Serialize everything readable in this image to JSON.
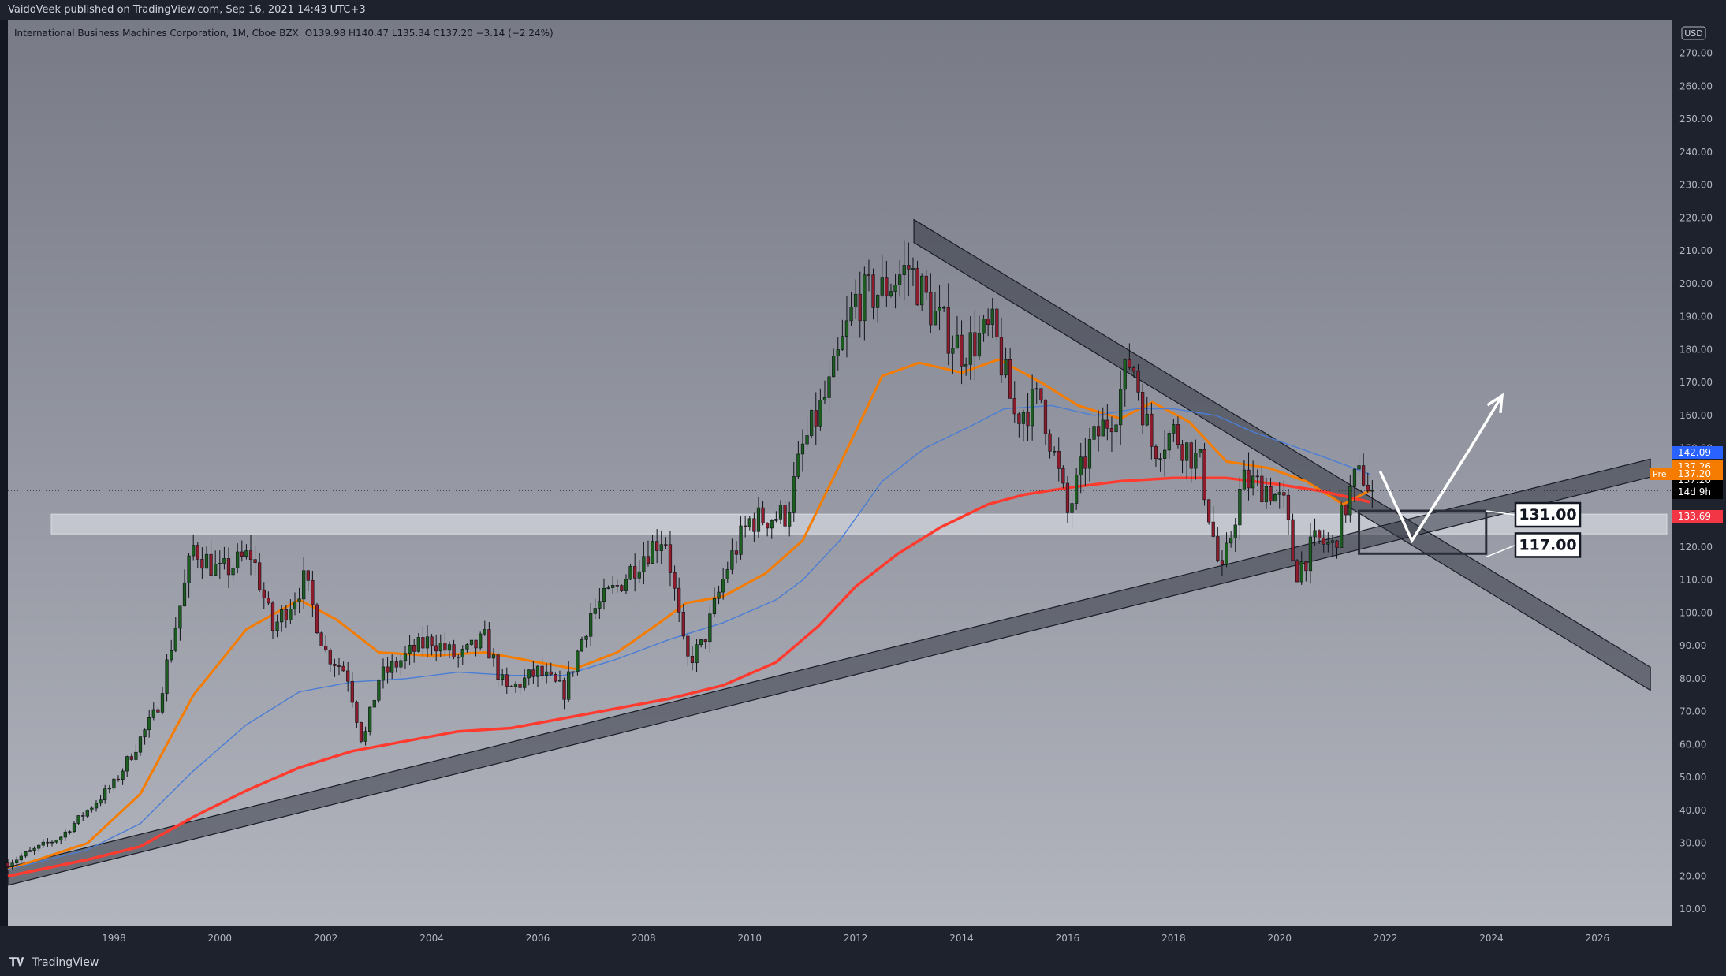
{
  "header": {
    "publisher": "VaidoVeek published on TradingView.com, Sep 16, 2021 14:43 UTC+3"
  },
  "footer": {
    "brand": "TradingView",
    "logo_icon": "tradingview-logo-icon"
  },
  "chart_data": {
    "type": "candlestick",
    "title": "International Business Machines Corporation, 1M, Cboe BZX",
    "ohlc_legend": "O139.98  H140.47  L135.34  C137.20  −3.14 (−2.24%)",
    "currency": "USD",
    "x_axis": {
      "range": [
        1996.0,
        2027.4
      ],
      "tick_labels": [
        "1998",
        "2000",
        "2002",
        "2004",
        "2006",
        "2008",
        "2010",
        "2012",
        "2014",
        "2016",
        "2018",
        "2020",
        "2022",
        "2024",
        "2026"
      ]
    },
    "y_axis": {
      "range": [
        5,
        280
      ],
      "position": "right",
      "tick_labels": [
        "270.00",
        "260.00",
        "250.00",
        "240.00",
        "230.00",
        "220.00",
        "210.00",
        "200.00",
        "190.00",
        "180.00",
        "170.00",
        "160.00",
        "150.00",
        "140.00",
        "130.00",
        "120.00",
        "110.00",
        "100.00",
        "90.00",
        "80.00",
        "70.00",
        "60.00",
        "50.00",
        "40.00",
        "30.00",
        "20.00",
        "10.00"
      ]
    },
    "price_anchors": [
      [
        1996.0,
        24
      ],
      [
        1997.0,
        32
      ],
      [
        1998.0,
        48
      ],
      [
        1998.8,
        70
      ],
      [
        1999.5,
        120
      ],
      [
        2000.0,
        112
      ],
      [
        2000.6,
        118
      ],
      [
        2001.0,
        95
      ],
      [
        2001.6,
        110
      ],
      [
        2002.0,
        88
      ],
      [
        2002.4,
        82
      ],
      [
        2002.7,
        60
      ],
      [
        2003.0,
        80
      ],
      [
        2003.6,
        88
      ],
      [
        2004.0,
        92
      ],
      [
        2004.5,
        86
      ],
      [
        2005.0,
        92
      ],
      [
        2005.4,
        76
      ],
      [
        2006.0,
        82
      ],
      [
        2006.5,
        76
      ],
      [
        2007.0,
        100
      ],
      [
        2007.5,
        108
      ],
      [
        2008.0,
        118
      ],
      [
        2008.4,
        124
      ],
      [
        2008.8,
        85
      ],
      [
        2009.1,
        90
      ],
      [
        2009.6,
        115
      ],
      [
        2010.0,
        128
      ],
      [
        2010.7,
        130
      ],
      [
        2011.0,
        150
      ],
      [
        2011.5,
        168
      ],
      [
        2012.0,
        195
      ],
      [
        2012.5,
        198
      ],
      [
        2013.0,
        205
      ],
      [
        2013.5,
        190
      ],
      [
        2014.0,
        180
      ],
      [
        2014.6,
        186
      ],
      [
        2015.0,
        160
      ],
      [
        2015.5,
        165
      ],
      [
        2016.0,
        130
      ],
      [
        2016.4,
        150
      ],
      [
        2016.9,
        162
      ],
      [
        2017.2,
        178
      ],
      [
        2017.6,
        150
      ],
      [
        2018.0,
        155
      ],
      [
        2018.5,
        145
      ],
      [
        2018.9,
        110
      ],
      [
        2019.3,
        140
      ],
      [
        2019.8,
        138
      ],
      [
        2020.1,
        132
      ],
      [
        2020.3,
        112
      ],
      [
        2020.7,
        122
      ],
      [
        2021.0,
        120
      ],
      [
        2021.4,
        140
      ],
      [
        2021.6,
        142
      ],
      [
        2021.71,
        137.2
      ]
    ],
    "series": [
      {
        "name": "",
        "color": "#f57c00",
        "points": [
          [
            1996.0,
            22
          ],
          [
            1997.5,
            30
          ],
          [
            1998.5,
            45
          ],
          [
            1999.5,
            75
          ],
          [
            2000.5,
            95
          ],
          [
            2001.5,
            104
          ],
          [
            2002.2,
            98
          ],
          [
            2003.0,
            88
          ],
          [
            2004.0,
            87
          ],
          [
            2005.0,
            88
          ],
          [
            2006.0,
            85
          ],
          [
            2006.7,
            83
          ],
          [
            2007.5,
            88
          ],
          [
            2008.3,
            97
          ],
          [
            2008.8,
            103
          ],
          [
            2009.5,
            105
          ],
          [
            2010.3,
            112
          ],
          [
            2011.0,
            122
          ],
          [
            2011.7,
            145
          ],
          [
            2012.5,
            172
          ],
          [
            2013.2,
            176
          ],
          [
            2014.0,
            173
          ],
          [
            2014.7,
            177
          ],
          [
            2015.5,
            170
          ],
          [
            2016.2,
            163
          ],
          [
            2017.0,
            159
          ],
          [
            2017.6,
            164
          ],
          [
            2018.3,
            158
          ],
          [
            2019.0,
            146
          ],
          [
            2019.8,
            144
          ],
          [
            2020.5,
            140
          ],
          [
            2021.2,
            133
          ],
          [
            2021.71,
            137.26
          ]
        ]
      },
      {
        "name": "",
        "color": "#4a7dd6",
        "points": [
          [
            1996.0,
            22
          ],
          [
            1997.5,
            28
          ],
          [
            1998.5,
            36
          ],
          [
            1999.5,
            52
          ],
          [
            2000.5,
            66
          ],
          [
            2001.5,
            76
          ],
          [
            2002.5,
            79
          ],
          [
            2003.5,
            80
          ],
          [
            2004.5,
            82
          ],
          [
            2005.5,
            81
          ],
          [
            2006.5,
            81
          ],
          [
            2007.5,
            86
          ],
          [
            2008.5,
            92
          ],
          [
            2009.5,
            97
          ],
          [
            2010.5,
            104
          ],
          [
            2011.0,
            110
          ],
          [
            2011.7,
            122
          ],
          [
            2012.5,
            140
          ],
          [
            2013.3,
            150
          ],
          [
            2014.2,
            157
          ],
          [
            2014.8,
            162
          ],
          [
            2015.7,
            163
          ],
          [
            2016.5,
            160
          ],
          [
            2017.3,
            162
          ],
          [
            2018.0,
            162
          ],
          [
            2018.8,
            160
          ],
          [
            2019.5,
            155
          ],
          [
            2020.2,
            151
          ],
          [
            2020.9,
            147
          ],
          [
            2021.71,
            142.09
          ]
        ]
      },
      {
        "name": "",
        "color": "#ff3b30",
        "points": [
          [
            1996.0,
            20
          ],
          [
            1997.5,
            25
          ],
          [
            1998.5,
            29
          ],
          [
            1999.5,
            38
          ],
          [
            2000.5,
            46
          ],
          [
            2001.5,
            53
          ],
          [
            2002.5,
            58
          ],
          [
            2003.5,
            61
          ],
          [
            2004.5,
            64
          ],
          [
            2005.5,
            65
          ],
          [
            2006.5,
            68
          ],
          [
            2007.5,
            71
          ],
          [
            2008.5,
            74
          ],
          [
            2009.5,
            78
          ],
          [
            2010.5,
            85
          ],
          [
            2011.3,
            96
          ],
          [
            2012.0,
            108
          ],
          [
            2012.8,
            118
          ],
          [
            2013.6,
            126
          ],
          [
            2014.5,
            133
          ],
          [
            2015.2,
            136
          ],
          [
            2016.0,
            138
          ],
          [
            2017.0,
            140
          ],
          [
            2018.0,
            141
          ],
          [
            2019.0,
            141
          ],
          [
            2020.0,
            139
          ],
          [
            2020.8,
            137
          ],
          [
            2021.71,
            133.69
          ]
        ]
      }
    ],
    "price_labels": [
      {
        "value": 142.09,
        "text": "142.09",
        "color": "#2962ff"
      },
      {
        "value": 137.26,
        "text": "137.26",
        "color": "#f57c00"
      },
      {
        "value": 137.2,
        "text": "137.20",
        "color": "#000000"
      },
      {
        "value": 133.69,
        "text": "133.69",
        "color": "#f23645"
      }
    ],
    "last_price_label": {
      "value": 137.2,
      "text": "137.20",
      "sub": "14d 9h"
    },
    "pre_market_label": {
      "text": "Pre",
      "value_text": "137.20",
      "color": "#f57c00"
    },
    "zone": {
      "from": 124,
      "to": 130
    },
    "channels": [
      {
        "name": "",
        "from": [
          2013.1,
          216
        ],
        "to": [
          2027.0,
          80
        ],
        "width": 7
      },
      {
        "name": "",
        "from": [
          1996.0,
          20
        ],
        "to": [
          2027.0,
          144
        ],
        "width": 5.5
      }
    ],
    "target_box": {
      "x": [
        2021.5,
        2023.9
      ],
      "y": [
        118,
        131
      ]
    },
    "annotations": [
      {
        "label": "131.00",
        "value": 131
      },
      {
        "label": "117.00",
        "value": 117
      }
    ],
    "projection_path": [
      [
        2021.9,
        143
      ],
      [
        2022.5,
        122
      ],
      [
        2023.6,
        150
      ],
      [
        2024.2,
        166
      ]
    ],
    "colors": {
      "up": "#1b5e20",
      "down": "#8e1c2c",
      "background_top": "#787b86",
      "background_bottom": "#b2b5be"
    }
  }
}
